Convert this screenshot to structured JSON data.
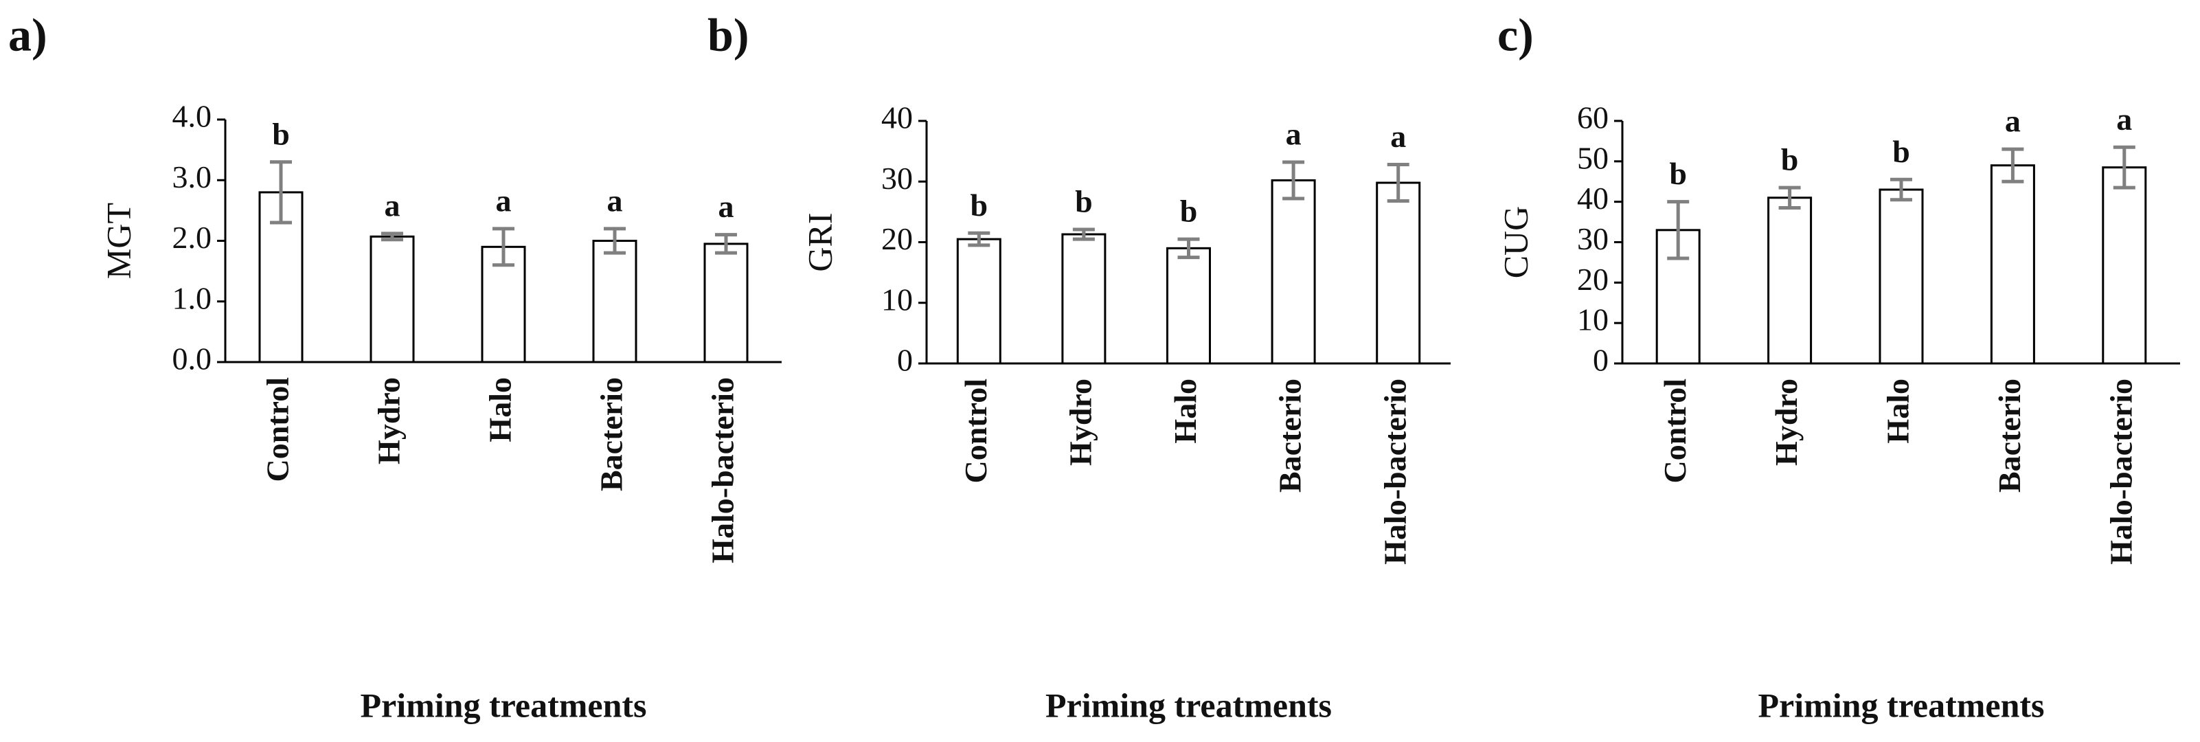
{
  "chart_data": [
    {
      "type": "bar",
      "panel": "a)",
      "ylabel": "MGT",
      "xlabel": "Priming treatments",
      "categories": [
        "Control",
        "Hydro",
        "Halo",
        "Bacterio",
        "Halo-bacterio"
      ],
      "values": [
        2.8,
        2.07,
        1.9,
        2.0,
        1.95
      ],
      "errors": [
        0.5,
        0.05,
        0.3,
        0.2,
        0.15
      ],
      "letters": [
        "b",
        "a",
        "a",
        "a",
        "a"
      ],
      "ylim": [
        0,
        4
      ],
      "yticks": [
        {
          "value": 0,
          "label": "0.0"
        },
        {
          "value": 1,
          "label": "1.0"
        },
        {
          "value": 2,
          "label": "2.0"
        },
        {
          "value": 3,
          "label": "3.0"
        },
        {
          "value": 4,
          "label": "4.0"
        }
      ],
      "color": "#ffffff",
      "error_color": "#808080"
    },
    {
      "type": "bar",
      "panel": "b)",
      "ylabel": "GRI",
      "xlabel": "Priming treatments",
      "categories": [
        "Control",
        "Hydro",
        "Halo",
        "Bacterio",
        "Halo-bacterio"
      ],
      "values": [
        20.5,
        21.3,
        19,
        30.2,
        29.8
      ],
      "errors": [
        1,
        0.8,
        1.5,
        3,
        3
      ],
      "letters": [
        "b",
        "b",
        "b",
        "a",
        "a"
      ],
      "ylim": [
        0,
        40
      ],
      "yticks": [
        0,
        10,
        20,
        30,
        40
      ],
      "color": "#ffffff",
      "error_color": "#808080"
    },
    {
      "type": "bar",
      "panel": "c)",
      "ylabel": "CUG",
      "xlabel": "Priming treatments",
      "categories": [
        "Control",
        "Hydro",
        "Halo",
        "Bacterio",
        "Halo-bacterio"
      ],
      "values": [
        33,
        41,
        43,
        49,
        48.5
      ],
      "errors": [
        7,
        2.5,
        2.5,
        4,
        5
      ],
      "letters": [
        "b",
        "b",
        "b",
        "a",
        "a"
      ],
      "ylim": [
        0,
        60
      ],
      "yticks": [
        0,
        10,
        20,
        30,
        40,
        50,
        60
      ],
      "color": "#ffffff",
      "error_color": "#808080"
    }
  ]
}
